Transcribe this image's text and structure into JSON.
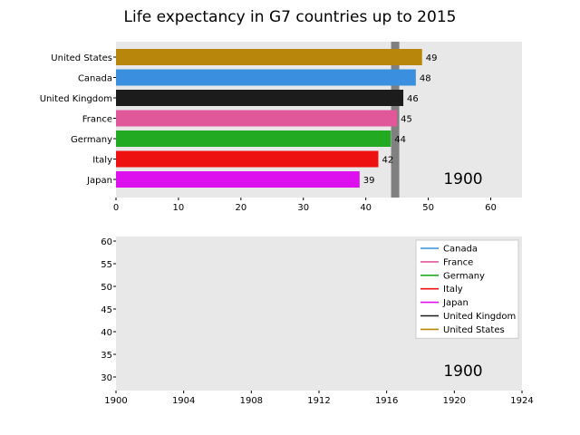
{
  "title": "Life expectancy in G7 countries up to 2015",
  "colors": {
    "United States": "#b8860b",
    "Canada": "#3a8fde",
    "United Kingdom": "#1c1c1c",
    "France": "#e0579a",
    "Germany": "#22aa22",
    "Italy": "#ee1111",
    "Japan": "#dd11ee",
    "axes_bg": "#e8e8e8",
    "average_line": "#808080"
  },
  "chart_data": [
    {
      "type": "bar",
      "orientation": "horizontal",
      "categories": [
        "United States",
        "Canada",
        "United Kingdom",
        "France",
        "Germany",
        "Italy",
        "Japan"
      ],
      "values": [
        49,
        48,
        46,
        45,
        44,
        42,
        39
      ],
      "value_labels": [
        "49",
        "48",
        "46",
        "45",
        "44",
        "42",
        "39"
      ],
      "xlim": [
        0,
        65
      ],
      "xticks": [
        0,
        10,
        20,
        30,
        40,
        50,
        60
      ],
      "average_line_value": 44.7,
      "year_annotation": "1900",
      "grid": false
    },
    {
      "type": "line",
      "series": [
        {
          "name": "Canada",
          "values": []
        },
        {
          "name": "France",
          "values": []
        },
        {
          "name": "Germany",
          "values": []
        },
        {
          "name": "Italy",
          "values": []
        },
        {
          "name": "Japan",
          "values": []
        },
        {
          "name": "United Kingdom",
          "values": []
        },
        {
          "name": "United States",
          "values": []
        }
      ],
      "xlim": [
        1900,
        1924
      ],
      "ylim": [
        27,
        61
      ],
      "xticks": [
        "1900",
        "1904",
        "1908",
        "1912",
        "1916",
        "1920",
        "1924"
      ],
      "yticks": [
        "30",
        "35",
        "40",
        "45",
        "50",
        "55",
        "60"
      ],
      "legend_position": "top-right",
      "year_annotation": "1900",
      "grid": false
    }
  ]
}
